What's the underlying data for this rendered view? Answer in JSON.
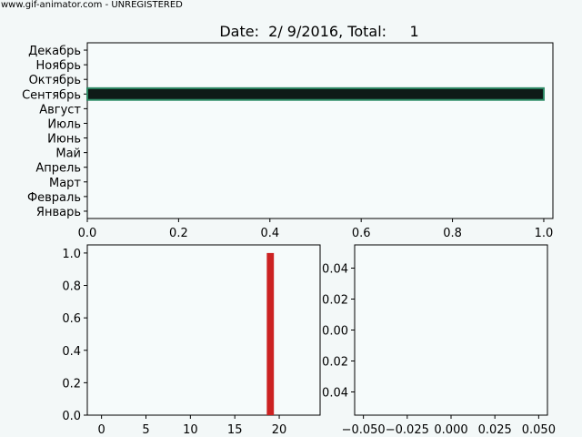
{
  "watermark": "www.gif-animator.com - UNREGISTERED",
  "chart_data": [
    {
      "type": "bar",
      "orientation": "horizontal",
      "title": "Date:  2/ 9/2016, Total:     1",
      "categories": [
        "Январь",
        "Февраль",
        "Март",
        "Апрель",
        "Май",
        "Июнь",
        "Июль",
        "Август",
        "Сентябрь",
        "Октябрь",
        "Ноябрь",
        "Декабрь"
      ],
      "values": [
        0,
        0,
        0,
        0,
        0,
        0,
        0,
        0,
        1,
        0,
        0,
        0
      ],
      "xlim": [
        0,
        1.02
      ],
      "xticks": [
        "0.0",
        "0.2",
        "0.4",
        "0.6",
        "0.8",
        "1.0"
      ],
      "bar_colors": {
        "fill": "#0e1a17",
        "edge": "#2e8b66"
      },
      "grid": false
    },
    {
      "type": "bar",
      "x": [
        19
      ],
      "values": [
        1
      ],
      "bar_width": 0.8,
      "xlim": [
        -1.6,
        24.6
      ],
      "ylim": [
        0,
        1.05
      ],
      "xticks": [
        "0",
        "5",
        "10",
        "15",
        "20"
      ],
      "yticks": [
        "0.0",
        "0.2",
        "0.4",
        "0.6",
        "0.8",
        "1.0"
      ],
      "bar_color": "#cc2222",
      "grid": false
    },
    {
      "type": "scatter",
      "x": [],
      "y": [],
      "xlim": [
        -0.055,
        0.055
      ],
      "ylim": [
        -0.055,
        0.055
      ],
      "xticks": [
        "−0.050",
        "−0.025",
        "0.000",
        "0.025",
        "0.050"
      ],
      "yticks": [
        "0.04",
        "0.02",
        "0.00",
        "0.02",
        "0.04"
      ],
      "grid": false
    }
  ]
}
